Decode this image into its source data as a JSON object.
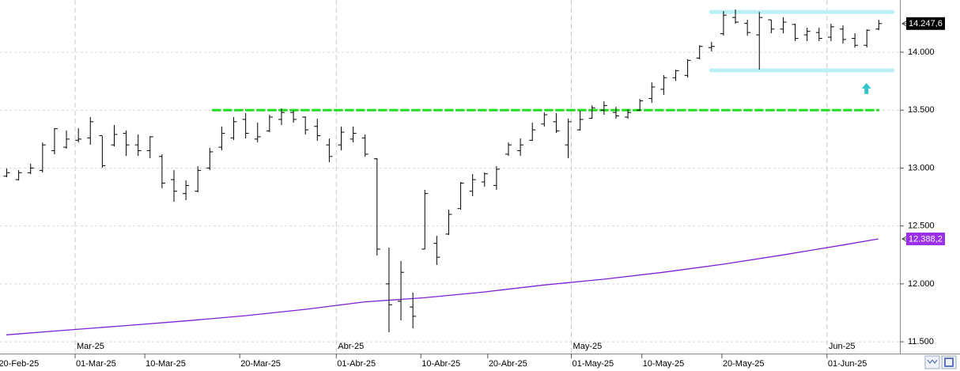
{
  "chart_data": {
    "type": "ohlc",
    "ohlc": {
      "color": "#000000",
      "open": [
        12930,
        12900,
        12960,
        12980,
        13150,
        13180,
        13240,
        13260,
        13280,
        13200,
        13300,
        13200,
        13150,
        13100,
        12900,
        12780,
        12800,
        13000,
        13180,
        13260,
        13420,
        13250,
        13320,
        13420,
        13480,
        13440,
        13360,
        13200,
        13200,
        13250,
        13260,
        13080,
        12000,
        11850,
        11800,
        12300,
        12350,
        12430,
        12650,
        12800,
        12880,
        12850,
        13120,
        13150,
        13240,
        13380,
        13400,
        13200,
        13330,
        13430,
        13500,
        13480,
        13440,
        13500,
        13600,
        13680,
        13780,
        13800,
        13950,
        14040,
        14160,
        14300,
        14250,
        14150,
        14280,
        14200,
        14240,
        14150,
        14170,
        14130,
        14200,
        14120,
        14060,
        14200
      ],
      "high": [
        12996,
        12982,
        13037,
        13221,
        13344,
        13324,
        13344,
        13440,
        13276,
        13372,
        13324,
        13290,
        13276,
        13119,
        12982,
        12894,
        13016,
        13174,
        13358,
        13440,
        13474,
        13392,
        13460,
        13515,
        13495,
        13447,
        13426,
        13255,
        13358,
        13358,
        13290,
        13085,
        12313,
        12197,
        11924,
        12812,
        12415,
        12641,
        12880,
        12948,
        12962,
        13016,
        13221,
        13256,
        13392,
        13481,
        13474,
        13426,
        13495,
        13542,
        13577,
        13529,
        13508,
        13597,
        13740,
        13802,
        13850,
        13939,
        14061,
        14089,
        14355,
        14369,
        14280,
        14348,
        14280,
        14301,
        14246,
        14212,
        14212,
        14246,
        14232,
        14164,
        14198,
        14280
      ],
      "low": [
        12921,
        12893,
        12948,
        12962,
        13119,
        13167,
        13221,
        13201,
        13003,
        13187,
        13105,
        13105,
        13085,
        12825,
        12709,
        12723,
        12791,
        12982,
        13153,
        13242,
        13256,
        13221,
        13310,
        13372,
        13392,
        13290,
        13235,
        13051,
        13153,
        13221,
        13098,
        12245,
        11582,
        11685,
        11616,
        12299,
        12163,
        12422,
        12641,
        12757,
        12839,
        12812,
        13105,
        13105,
        13235,
        13358,
        13303,
        13085,
        13324,
        13426,
        13460,
        13426,
        13426,
        13495,
        13563,
        13631,
        13754,
        13781,
        13939,
        14007,
        14143,
        14246,
        14143,
        13850,
        14164,
        14164,
        14096,
        14096,
        14096,
        14096,
        14075,
        14041,
        14041,
        14191
      ],
      "close": [
        12960,
        12960,
        13000,
        13200,
        13340,
        13250,
        13250,
        13400,
        13020,
        13290,
        13200,
        13150,
        13270,
        12870,
        12800,
        12850,
        12980,
        13140,
        13300,
        13400,
        13300,
        13270,
        13440,
        13480,
        13420,
        13330,
        13280,
        13100,
        13310,
        13300,
        13120,
        12300,
        11820,
        12100,
        11720,
        12780,
        12230,
        12600,
        12870,
        12900,
        12950,
        12990,
        13200,
        13200,
        13330,
        13460,
        13320,
        13400,
        13420,
        13520,
        13540,
        13450,
        13480,
        13580,
        13700,
        13780,
        13840,
        13930,
        14050,
        14050,
        14320,
        14260,
        14170,
        14300,
        14200,
        14260,
        14120,
        14180,
        14120,
        14220,
        14110,
        14060,
        14190,
        14247.6
      ]
    },
    "sma": {
      "color": "#7b22d6",
      "x": [
        0,
        5,
        10,
        15,
        20,
        25,
        30,
        35,
        40,
        45,
        50,
        55,
        60,
        65,
        70,
        73
      ],
      "values": [
        11560,
        11600,
        11640,
        11680,
        11725,
        11780,
        11845,
        11880,
        11930,
        11990,
        12040,
        12100,
        12170,
        12250,
        12335,
        12388.2
      ]
    },
    "xlim": [
      -0.53,
      74.8
    ],
    "ylim": [
      11398,
      14451
    ],
    "yticks": [
      {
        "value": 11500,
        "label": "11.500"
      },
      {
        "value": 12000,
        "label": "12.000"
      },
      {
        "value": 12500,
        "label": "12.500"
      },
      {
        "value": 13000,
        "label": "13.000"
      },
      {
        "value": 13500,
        "label": "13.500"
      },
      {
        "value": 14000,
        "label": "14.000"
      }
    ],
    "xticks": [
      {
        "value": -0.7,
        "label": "20-Feb-25"
      },
      {
        "value": 5.76,
        "label": "01-Mar-25"
      },
      {
        "value": 11.59,
        "label": "10-Mar-25"
      },
      {
        "value": 19.54,
        "label": "20-Mar-25"
      },
      {
        "value": 27.62,
        "label": "01-Abr-25"
      },
      {
        "value": 34.7,
        "label": "10-Abr-25"
      },
      {
        "value": 40.3,
        "label": "20-Abr-25"
      },
      {
        "value": 47.3,
        "label": "01-May-25"
      },
      {
        "value": 53.2,
        "label": "10-May-25"
      },
      {
        "value": 59.9,
        "label": "20-May-25"
      },
      {
        "value": 68.7,
        "label": "01-Jun-25"
      }
    ],
    "month_ticks": [
      {
        "value": 5.76,
        "label": "Mar-25"
      },
      {
        "value": 27.62,
        "label": "Abr-25"
      },
      {
        "value": 47.3,
        "label": "May-25"
      },
      {
        "value": 68.7,
        "label": "Jun-25"
      }
    ],
    "grid": true,
    "hlines": [
      {
        "value": 13500,
        "from": 17.3,
        "to": 73,
        "color": "#22dd22"
      },
      {
        "value": 14348,
        "from": 59,
        "to": 74.2,
        "color": "#bdeff6"
      },
      {
        "value": 13843,
        "from": 59,
        "to": 74.2,
        "color": "#bdeff6"
      }
    ],
    "arrow": {
      "x": 72,
      "value": 13680,
      "color": "#33c6c6"
    },
    "price_labels": [
      {
        "value": 14247.6,
        "label": "14.247,6",
        "color": "#000000"
      },
      {
        "value": 12388.2,
        "label": "12.388,2",
        "color": "#9b30e8"
      }
    ]
  }
}
